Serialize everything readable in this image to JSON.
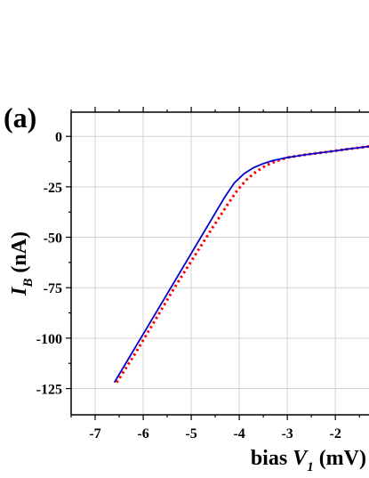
{
  "panel_label": "(a)",
  "chart_data": {
    "type": "line",
    "title": "",
    "xlabel_prefix": "bias ",
    "xlabel_symbol": "V",
    "xlabel_subscript": "1",
    "xlabel_unit": " (mV)",
    "ylabel_symbol": "I",
    "ylabel_subscript": "B",
    "ylabel_unit": " (nA)",
    "xlim": [
      -7.5,
      -1.3
    ],
    "ylim": [
      -138,
      12
    ],
    "x_ticks": [
      -7,
      -6,
      -5,
      -4,
      -3,
      -2
    ],
    "x_tick_labels": [
      "-7",
      "-6",
      "-5",
      "-4",
      "-3",
      "-2"
    ],
    "y_ticks": [
      0,
      -25,
      -50,
      -75,
      -100,
      -125
    ],
    "y_tick_labels": [
      "0",
      "-25",
      "-50",
      "-75",
      "-100",
      "-125"
    ],
    "grid": true,
    "colors": {
      "fit": "#0000cc",
      "data": "#ff0000",
      "axis": "#000000",
      "grid": "#d3d3d3"
    },
    "series": [
      {
        "style": "solid",
        "x": [
          -6.6,
          -6.2,
          -5.8,
          -5.4,
          -5.0,
          -4.6,
          -4.3,
          -4.1,
          -3.9,
          -3.7,
          -3.5,
          -3.3,
          -3.0,
          -2.6,
          -2.2,
          -1.8,
          -1.3
        ],
        "y": [
          -122,
          -106,
          -90,
          -74,
          -58,
          -42,
          -30,
          -23,
          -18.5,
          -15.5,
          -13.5,
          -12,
          -10.5,
          -9,
          -7.8,
          -6.5,
          -5
        ]
      },
      {
        "style": "dotted",
        "x": [
          -6.55,
          -6.15,
          -5.75,
          -5.35,
          -4.95,
          -4.55,
          -4.25,
          -4.05,
          -3.85,
          -3.65,
          -3.45,
          -3.25,
          -3.0,
          -2.6,
          -2.2,
          -1.8,
          -1.3
        ],
        "y": [
          -122,
          -107,
          -91,
          -75,
          -60,
          -45,
          -34,
          -27,
          -21.5,
          -17.5,
          -14.5,
          -12.5,
          -10.5,
          -9,
          -7.8,
          -6.5,
          -5
        ]
      }
    ]
  }
}
